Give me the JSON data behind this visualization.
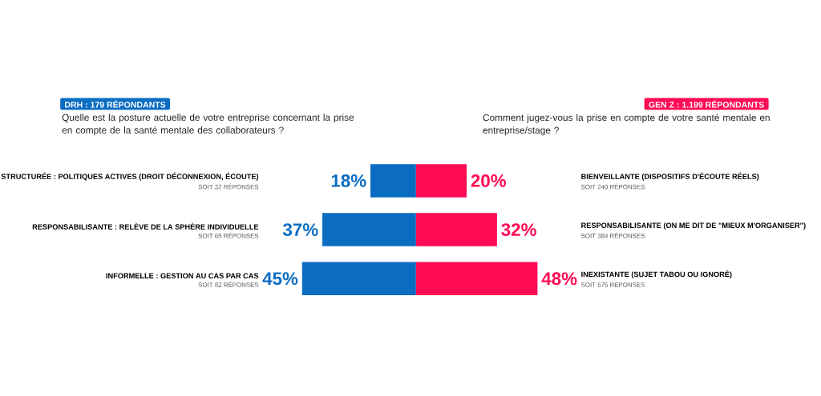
{
  "chart_data": [
    {
      "type": "bar",
      "orientation": "horizontal",
      "title": "DRH : 179 RÉPONDANTS",
      "subtitle": "Quelle est la posture actuelle de votre entreprise concernant la prise en compte de la santé mentale des collaborateurs ?",
      "categories": [
        "STRUCTURÉE : POLITIQUES ACTIVES (DROIT DÉCONNEXION, ÉCOUTE)",
        "RESPONSABILISANTE : RELÈVE DE LA SPHÈRE INDIVIDUELLE",
        "INFORMELLE : GESTION AU CAS PAR CAS"
      ],
      "values": [
        18,
        37,
        45
      ],
      "color": "#0a6dc2",
      "tick_labels": "y",
      "value_labels": [
        "18%",
        "37%",
        "45%"
      ],
      "annotations": [
        "SOIT 32 RÉPONSES",
        "SOIT 65 RÉPONSES",
        "SOIT 82 RÉPONSES"
      ]
    },
    {
      "type": "bar",
      "orientation": "horizontal",
      "title": "GEN Z : 1.199 RÉPONDANTS",
      "subtitle": "Comment jugez-vous la prise en compte de votre santé mentale en entreprise/stage ?",
      "categories": [
        "BIENVEILLANTE (DISPOSITIFS D'ÉCOUTE RÉELS)",
        "RESPONSABILISANTE (ON ME DIT DE \"MIEUX M'ORGANISER\")",
        "INEXISTANTE (SUJET TABOU OU IGNORÉ)"
      ],
      "values": [
        20,
        32,
        48
      ],
      "color": "#ff0a54",
      "tick_labels": "y",
      "value_labels": [
        "20%",
        "32%",
        "48%"
      ],
      "annotations": [
        "SOIT 240 RÉPONSES",
        "SOIT 384 RÉPONSES",
        "SOIT 575 RÉPONSES"
      ]
    }
  ]
}
